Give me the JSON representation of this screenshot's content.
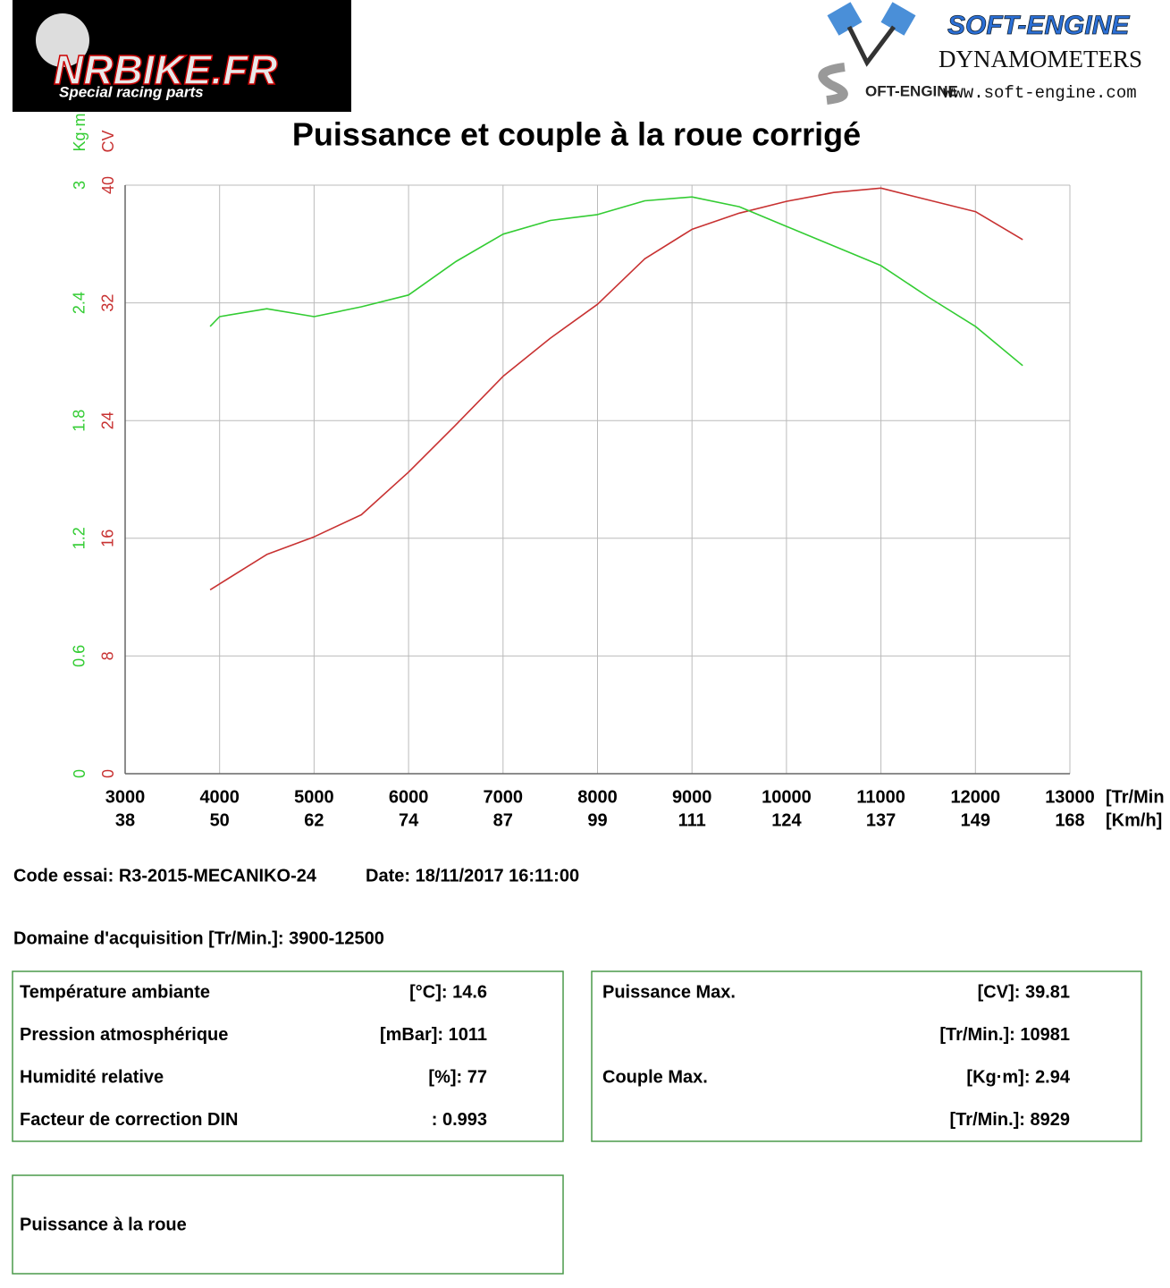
{
  "header": {
    "left_logo": "NRBIKE.FR",
    "left_slogan": "Special racing parts",
    "right_logo": "SOFT-ENGINE",
    "right_sub": "DYNAMOMETERS",
    "right_url": "www.soft-engine.com",
    "right_mark": "OFT-ENGINE"
  },
  "chart_data": {
    "type": "line",
    "title": "Puissance et couple à la roue corrigé",
    "x": [
      3900,
      4000,
      4500,
      5000,
      5500,
      6000,
      6500,
      7000,
      7500,
      8000,
      8500,
      9000,
      9500,
      10000,
      10500,
      11000,
      11500,
      12000,
      12500
    ],
    "series": [
      {
        "name": "CV",
        "color": "#c83232",
        "axis": "y",
        "values": [
          12.5,
          12.9,
          14.9,
          16.1,
          17.6,
          20.5,
          23.7,
          27.0,
          29.6,
          31.9,
          35.0,
          37.0,
          38.1,
          38.9,
          39.5,
          39.8,
          39.0,
          38.2,
          36.3
        ]
      },
      {
        "name": "Kg·m",
        "color": "#33cc33",
        "axis": "y2",
        "values": [
          2.28,
          2.33,
          2.37,
          2.33,
          2.38,
          2.44,
          2.61,
          2.75,
          2.82,
          2.85,
          2.92,
          2.94,
          2.89,
          2.79,
          2.69,
          2.59,
          2.43,
          2.28,
          2.08
        ]
      }
    ],
    "xlim": [
      3000,
      13000
    ],
    "xticks": [
      3000,
      4000,
      5000,
      6000,
      7000,
      8000,
      9000,
      10000,
      11000,
      12000,
      13000
    ],
    "x_unit": "[Tr/Min",
    "x2_labels": [
      38,
      50,
      62,
      74,
      87,
      99,
      111,
      124,
      137,
      149,
      168
    ],
    "x2_unit": "[Km/h]",
    "ylim": [
      0,
      40
    ],
    "yticks": [
      0,
      8,
      16,
      24,
      32,
      40
    ],
    "y2lim": [
      0,
      3
    ],
    "y2ticks": [
      0,
      0.6,
      1.2,
      1.8,
      2.4,
      3
    ],
    "grid": true
  },
  "report": {
    "test_code": "Code essai: R3-2015-MECANIKO-24",
    "date": "Date: 18/11/2017 16:11:00",
    "acquisition": "Domaine d'acquisition [Tr/Min.]: 3900-12500",
    "conditions": [
      {
        "label": "Température ambiante",
        "value": "[°C]: 14.6"
      },
      {
        "label": "Pression atmosphérique",
        "value": "[mBar]: 1011"
      },
      {
        "label": "Humidité relative",
        "value": "[%]: 77"
      },
      {
        "label": "Facteur de correction DIN",
        "value": ": 0.993"
      }
    ],
    "maxima": [
      {
        "label": "Puissance Max.",
        "value": "[CV]: 39.81"
      },
      {
        "value": "[Tr/Min.]: 10981"
      },
      {
        "label": "Couple Max.",
        "value": "[Kg·m]: 2.94"
      },
      {
        "value": "[Tr/Min.]: 8929"
      }
    ],
    "wheel_power": "Puissance à la roue"
  }
}
